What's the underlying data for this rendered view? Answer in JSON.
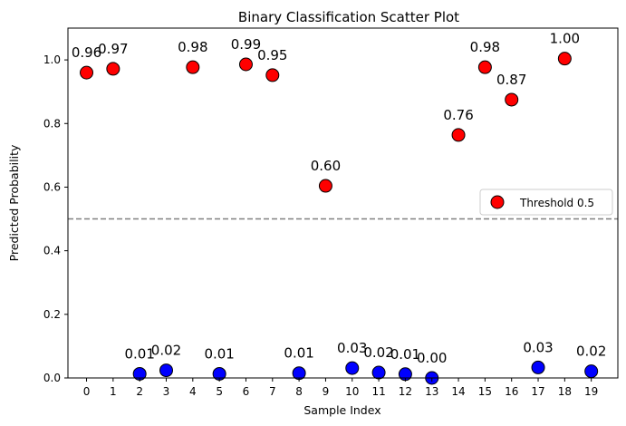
{
  "chart_data": {
    "type": "scatter",
    "title": "Binary Classification Scatter Plot",
    "xlabel": "Sample Index",
    "ylabel": "Predicted Probability",
    "xlim": [
      -0.7,
      20
    ],
    "ylim": [
      0,
      1.1
    ],
    "x_ticks": [
      "0",
      "1",
      "2",
      "3",
      "4",
      "5",
      "6",
      "7",
      "8",
      "9",
      "10",
      "11",
      "12",
      "13",
      "14",
      "15",
      "16",
      "17",
      "18",
      "19"
    ],
    "y_ticks": [
      "0.0",
      "0.2",
      "0.4",
      "0.6",
      "0.8",
      "1.0"
    ],
    "y_tick_values": [
      0,
      0.2,
      0.4,
      0.6,
      0.8,
      1.0
    ],
    "grid": false,
    "legend_position": "center-right",
    "threshold": {
      "value": 0.5,
      "label": "Threshold 0.5",
      "color": "#808080",
      "style": "dashed"
    },
    "colors": {
      "above": "#ff0000",
      "below": "#0000ff",
      "edge": "#000000"
    },
    "points": [
      {
        "x": 0,
        "y": 0.96,
        "label": "0.96"
      },
      {
        "x": 1,
        "y": 0.972,
        "label": "0.97"
      },
      {
        "x": 2,
        "y": 0.013,
        "label": "0.01"
      },
      {
        "x": 3,
        "y": 0.024,
        "label": "0.02"
      },
      {
        "x": 4,
        "y": 0.977,
        "label": "0.98"
      },
      {
        "x": 5,
        "y": 0.013,
        "label": "0.01"
      },
      {
        "x": 6,
        "y": 0.986,
        "label": "0.99"
      },
      {
        "x": 7,
        "y": 0.952,
        "label": "0.95"
      },
      {
        "x": 8,
        "y": 0.015,
        "label": "0.01"
      },
      {
        "x": 9,
        "y": 0.604,
        "label": "0.60"
      },
      {
        "x": 10,
        "y": 0.031,
        "label": "0.03"
      },
      {
        "x": 11,
        "y": 0.017,
        "label": "0.02"
      },
      {
        "x": 12,
        "y": 0.012,
        "label": "0.01"
      },
      {
        "x": 13,
        "y": 0.0,
        "label": "0.00"
      },
      {
        "x": 14,
        "y": 0.764,
        "label": "0.76"
      },
      {
        "x": 15,
        "y": 0.977,
        "label": "0.98"
      },
      {
        "x": 16,
        "y": 0.875,
        "label": "0.87"
      },
      {
        "x": 17,
        "y": 0.033,
        "label": "0.03"
      },
      {
        "x": 18,
        "y": 1.004,
        "label": "1.00"
      },
      {
        "x": 19,
        "y": 0.021,
        "label": "0.02"
      }
    ]
  }
}
